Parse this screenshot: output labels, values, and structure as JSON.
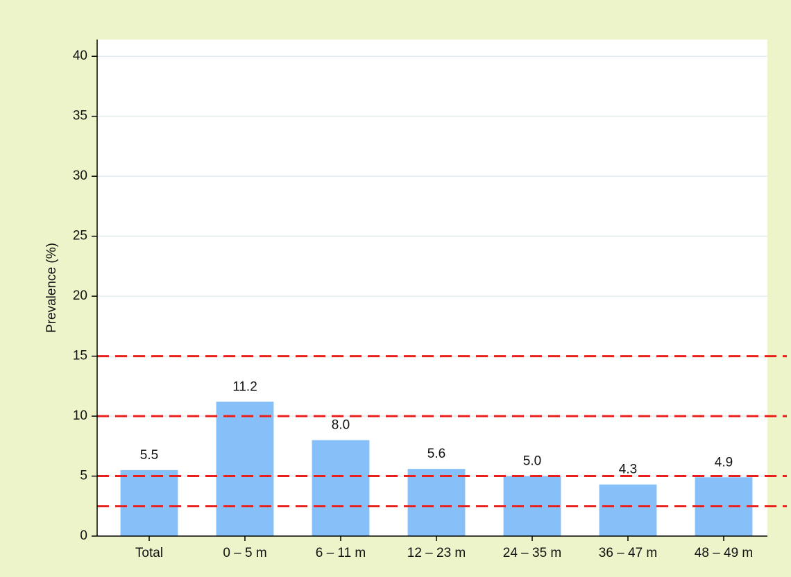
{
  "chart_data": {
    "type": "bar",
    "y_label": "Prevalence (%)",
    "categories": [
      "Total",
      "0 – 5 m",
      "6 – 11 m",
      "12 – 23 m",
      "24 – 35 m",
      "36 – 47 m",
      "48 – 49 m"
    ],
    "values": [
      5.5,
      11.2,
      8.0,
      5.6,
      5.0,
      4.3,
      4.9
    ],
    "value_labels": [
      "5.5",
      "11.2",
      "8.0",
      "5.6",
      "5.0",
      "4.3",
      "4.9"
    ],
    "color": "#87c0f8",
    "ylim": [
      0,
      41.4
    ],
    "yticks": [
      0,
      5,
      10,
      15,
      20,
      25,
      30,
      35,
      40
    ],
    "grid": true,
    "reference_lines": [
      2.5,
      5,
      10,
      15
    ],
    "reference_color": "#e8201c"
  }
}
